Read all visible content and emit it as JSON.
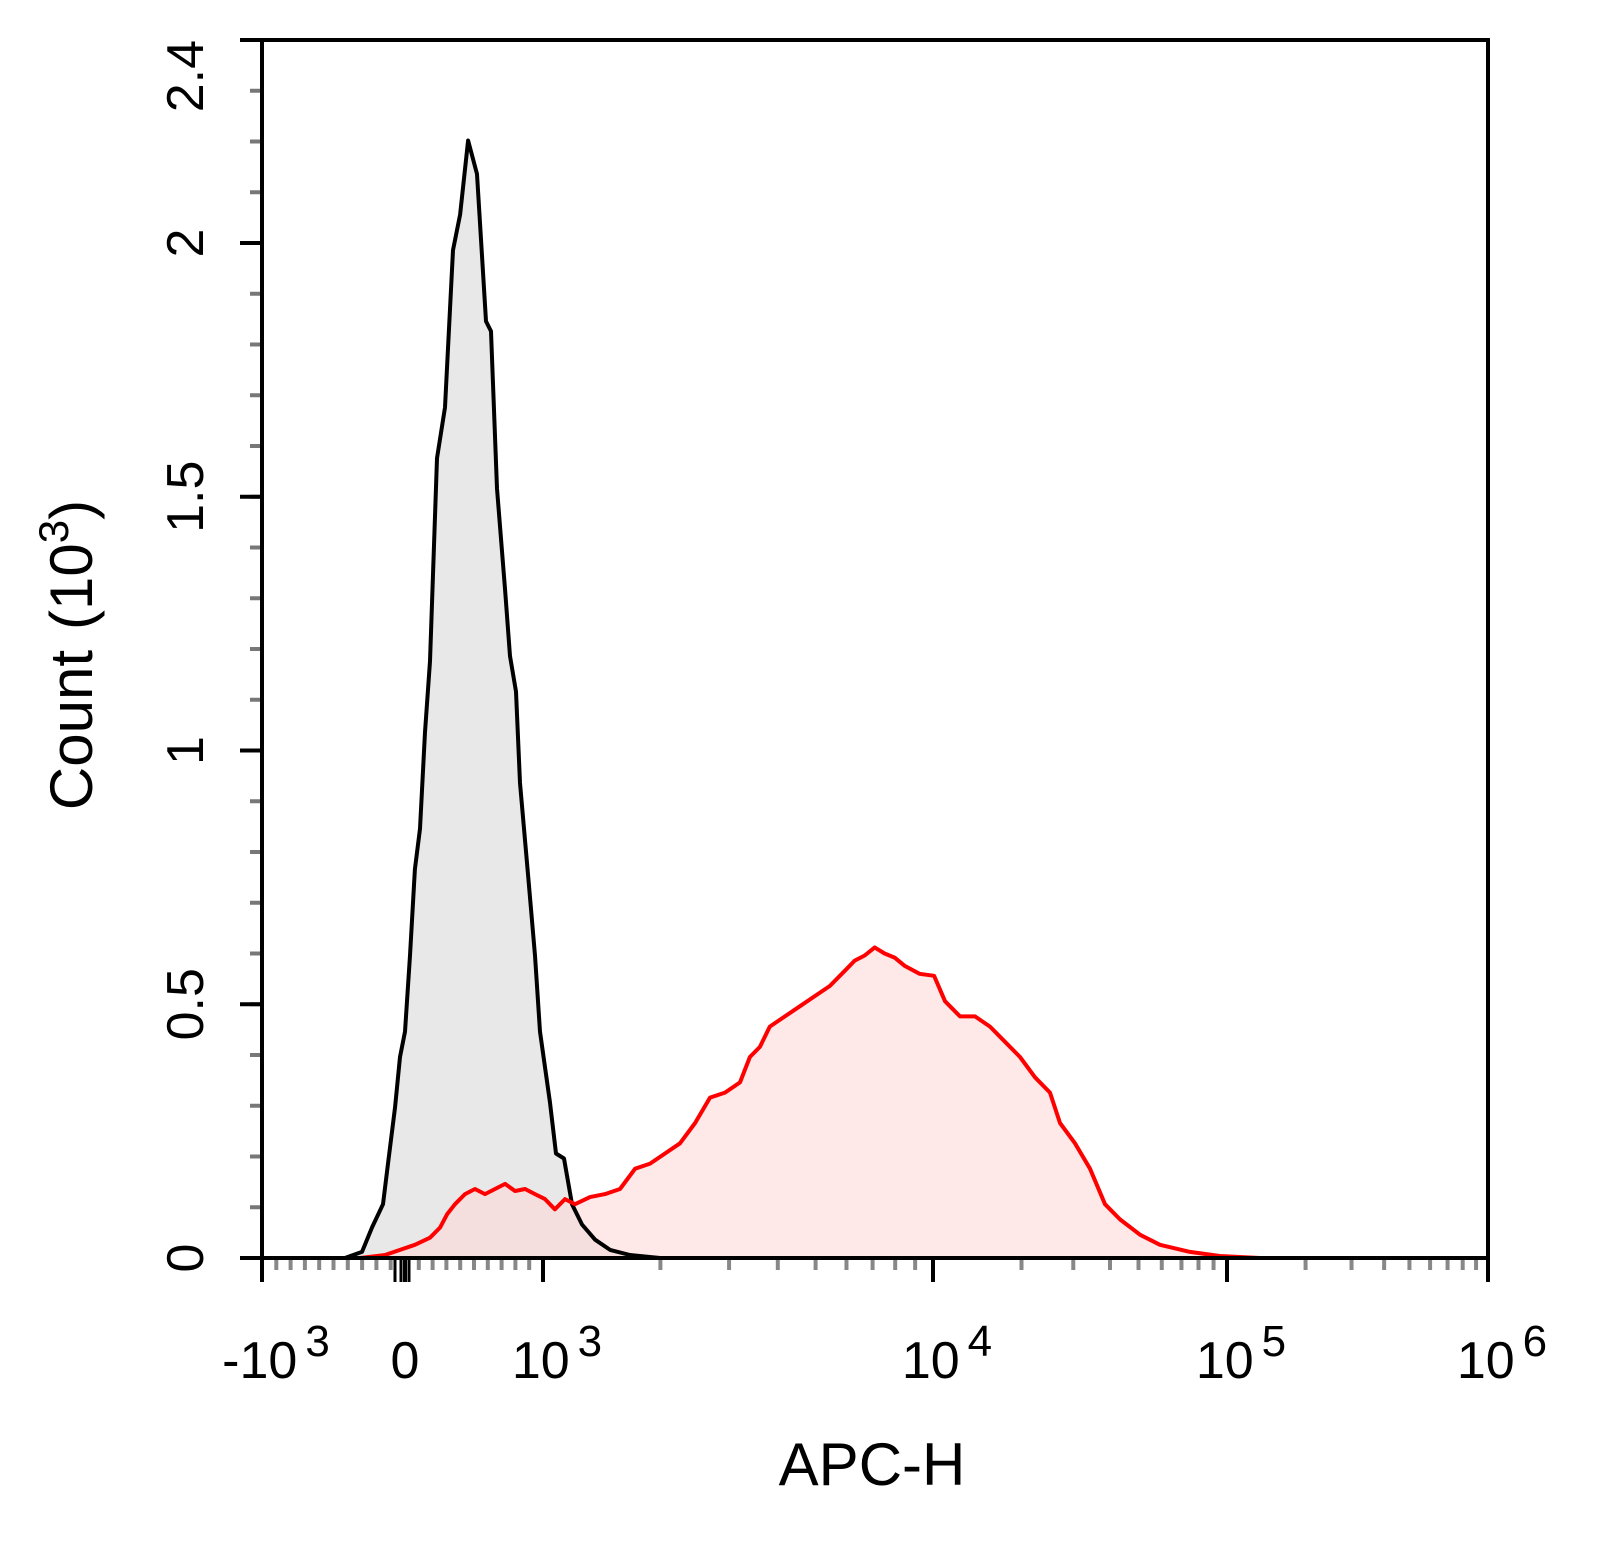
{
  "chart_data": {
    "type": "area",
    "xlabel": "APC-H",
    "ylabel": "Count",
    "ylabel_unit": "(10",
    "ylabel_unit_exp": "3",
    "ylabel_close": ")",
    "x_scale": "biexponential",
    "xlim": [
      -1000,
      1000000
    ],
    "ylim": [
      0,
      2.4
    ],
    "x_ticks": [
      {
        "value": -1000,
        "base": "-10",
        "exp": "3"
      },
      {
        "value": 0,
        "base": "0",
        "exp": ""
      },
      {
        "value": 1000,
        "base": "10",
        "exp": "3"
      },
      {
        "value": 10000,
        "base": "10",
        "exp": "4"
      },
      {
        "value": 100000,
        "base": "10",
        "exp": "5"
      },
      {
        "value": 1000000,
        "base": "10",
        "exp": "6"
      }
    ],
    "y_ticks": [
      {
        "value": 0,
        "label": "0"
      },
      {
        "value": 0.5,
        "label": "0.5"
      },
      {
        "value": 1,
        "label": "1"
      },
      {
        "value": 1.5,
        "label": "1.5"
      },
      {
        "value": 2,
        "label": "2"
      },
      {
        "value": 2.4,
        "label": "2.4"
      }
    ],
    "grid": false,
    "series": [
      {
        "color": "#000000",
        "fill": "#e8e8e8",
        "points": [
          [
            -420,
            0
          ],
          [
            -301,
            0.012
          ],
          [
            -231,
            0.06
          ],
          [
            -154,
            0.106
          ],
          [
            -119,
            0.186
          ],
          [
            -70,
            0.296
          ],
          [
            -35,
            0.396
          ],
          [
            0,
            0.446
          ],
          [
            36,
            0.596
          ],
          [
            72,
            0.766
          ],
          [
            109,
            0.846
          ],
          [
            145,
            1.036
          ],
          [
            181,
            1.176
          ],
          [
            232,
            1.576
          ],
          [
            290,
            1.676
          ],
          [
            348,
            1.986
          ],
          [
            399,
            2.056
          ],
          [
            457,
            2.202
          ],
          [
            522,
            2.136
          ],
          [
            587,
            1.846
          ],
          [
            623,
            1.826
          ],
          [
            667,
            1.516
          ],
          [
            725,
            1.316
          ],
          [
            761,
            1.186
          ],
          [
            804,
            1.116
          ],
          [
            833,
            0.936
          ],
          [
            891,
            0.756
          ],
          [
            942,
            0.596
          ],
          [
            978,
            0.446
          ],
          [
            1012,
            0.376
          ],
          [
            1042,
            0.306
          ],
          [
            1080,
            0.206
          ],
          [
            1132,
            0.196
          ],
          [
            1187,
            0.106
          ],
          [
            1259,
            0.066
          ],
          [
            1360,
            0.036
          ],
          [
            1486,
            0.016
          ],
          [
            1671,
            0.006
          ],
          [
            1995,
            0
          ]
        ]
      },
      {
        "color": "#ff0000",
        "fill": "#ffd6d6",
        "points": [
          [
            -315,
            0
          ],
          [
            -140,
            0.006
          ],
          [
            -35,
            0.016
          ],
          [
            72,
            0.026
          ],
          [
            181,
            0.04
          ],
          [
            254,
            0.06
          ],
          [
            304,
            0.086
          ],
          [
            362,
            0.106
          ],
          [
            435,
            0.126
          ],
          [
            507,
            0.136
          ],
          [
            580,
            0.126
          ],
          [
            652,
            0.136
          ],
          [
            725,
            0.146
          ],
          [
            797,
            0.132
          ],
          [
            870,
            0.136
          ],
          [
            942,
            0.126
          ],
          [
            1012,
            0.116
          ],
          [
            1073,
            0.096
          ],
          [
            1139,
            0.116
          ],
          [
            1208,
            0.106
          ],
          [
            1320,
            0.12
          ],
          [
            1442,
            0.126
          ],
          [
            1576,
            0.136
          ],
          [
            1722,
            0.176
          ],
          [
            1882,
            0.186
          ],
          [
            2055,
            0.206
          ],
          [
            2246,
            0.226
          ],
          [
            2454,
            0.266
          ],
          [
            2681,
            0.316
          ],
          [
            2929,
            0.326
          ],
          [
            3200,
            0.346
          ],
          [
            3393,
            0.396
          ],
          [
            3598,
            0.416
          ],
          [
            3815,
            0.456
          ],
          [
            4170,
            0.476
          ],
          [
            4555,
            0.496
          ],
          [
            4977,
            0.516
          ],
          [
            5437,
            0.536
          ],
          [
            5940,
            0.566
          ],
          [
            6300,
            0.586
          ],
          [
            6680,
            0.596
          ],
          [
            7087,
            0.612
          ],
          [
            7515,
            0.6
          ],
          [
            7970,
            0.592
          ],
          [
            8450,
            0.576
          ],
          [
            9233,
            0.56
          ],
          [
            10087,
            0.556
          ],
          [
            10985,
            0.506
          ],
          [
            12355,
            0.476
          ],
          [
            13900,
            0.476
          ],
          [
            15630,
            0.456
          ],
          [
            17580,
            0.426
          ],
          [
            19770,
            0.396
          ],
          [
            22230,
            0.356
          ],
          [
            25000,
            0.326
          ],
          [
            27040,
            0.266
          ],
          [
            30410,
            0.226
          ],
          [
            34200,
            0.176
          ],
          [
            38460,
            0.106
          ],
          [
            43250,
            0.076
          ],
          [
            50580,
            0.046
          ],
          [
            59150,
            0.026
          ],
          [
            74820,
            0.012
          ],
          [
            94590,
            0.004
          ],
          [
            133700,
            0
          ],
          [
            190500,
            0
          ]
        ]
      }
    ]
  }
}
